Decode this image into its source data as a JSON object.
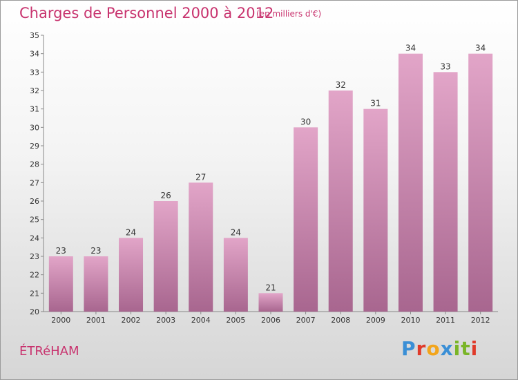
{
  "header": {
    "title": "Charges de Personnel 2000 à 2012",
    "unit_note": "(en milliers d'€)"
  },
  "footer": {
    "place": "ÉTRéHAM",
    "brand": {
      "letters": [
        "P",
        "r",
        "o",
        "x",
        "i",
        "t",
        "i"
      ],
      "colors": [
        "#3a8fd6",
        "#e03a2a",
        "#f2a51c",
        "#3a8fd6",
        "#7ab528",
        "#7ab528",
        "#e03a2a"
      ]
    }
  },
  "colors": {
    "title": "#c8336e",
    "bar_top": "#e2a5c8",
    "bar_bottom": "#a8668f"
  },
  "chart_data": {
    "type": "bar",
    "title": "Charges de Personnel 2000 à 2012",
    "subtitle": "(en milliers d'€)",
    "xlabel": "",
    "ylabel": "",
    "categories": [
      "2000",
      "2001",
      "2002",
      "2003",
      "2004",
      "2005",
      "2006",
      "2007",
      "2008",
      "2009",
      "2010",
      "2011",
      "2012"
    ],
    "values": [
      23,
      23,
      24,
      26,
      27,
      24,
      21,
      30,
      32,
      31,
      34,
      33,
      34
    ],
    "ylim": [
      20,
      35
    ],
    "yticks": [
      20,
      21,
      22,
      23,
      24,
      25,
      26,
      27,
      28,
      29,
      30,
      31,
      32,
      33,
      34,
      35
    ],
    "grid": false,
    "data_labels": true
  }
}
